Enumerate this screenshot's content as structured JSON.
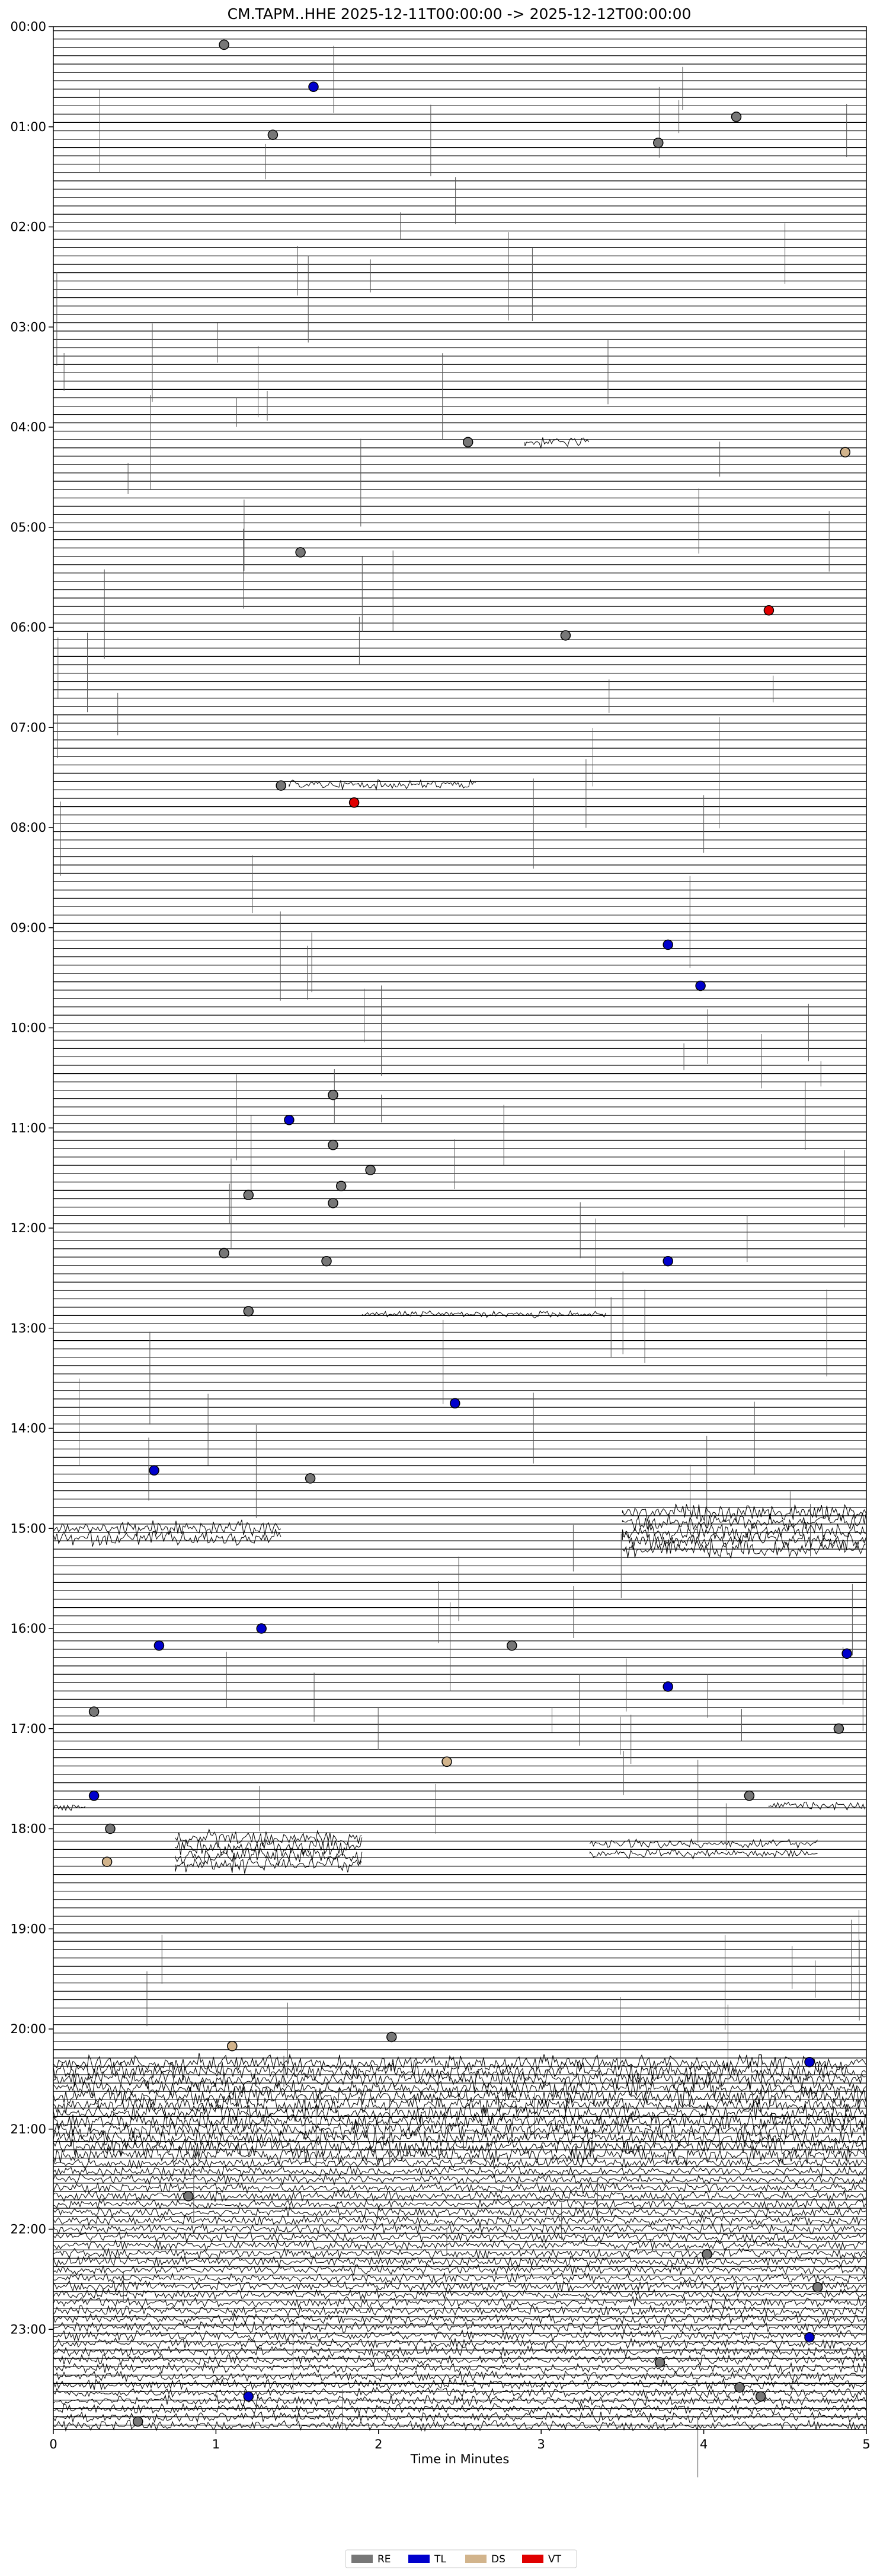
{
  "chart_data": {
    "type": "scatter",
    "title": "CM.TAPM..HHE  2025-12-11T00:00:00 -> 2025-12-12T00:00:00",
    "xlabel": "Time in Minutes",
    "ylabel": "",
    "xlim": [
      0,
      5
    ],
    "ylim_hours": [
      0,
      24
    ],
    "x_ticks": [
      0,
      1,
      2,
      3,
      4,
      5
    ],
    "y_tick_labels": [
      "00:00",
      "01:00",
      "02:00",
      "03:00",
      "04:00",
      "05:00",
      "06:00",
      "07:00",
      "08:00",
      "09:00",
      "10:00",
      "11:00",
      "12:00",
      "13:00",
      "14:00",
      "15:00",
      "16:00",
      "17:00",
      "18:00",
      "19:00",
      "20:00",
      "21:00",
      "22:00",
      "23:00"
    ],
    "trace_interval_minutes": 5,
    "colors": {
      "RE": "#777777",
      "TL": "#0000cc",
      "DS": "#d2b48c",
      "VT": "#e00000"
    },
    "legend": [
      {
        "key": "RE",
        "label": "RE"
      },
      {
        "key": "TL",
        "label": "TL"
      },
      {
        "key": "DS",
        "label": "DS"
      },
      {
        "key": "VT",
        "label": "VT"
      }
    ],
    "legend_position": "bottom-center",
    "events": [
      {
        "minute": 1.05,
        "hour": 0.18,
        "class": "RE"
      },
      {
        "minute": 1.6,
        "hour": 0.6,
        "class": "TL"
      },
      {
        "minute": 1.35,
        "hour": 1.08,
        "class": "RE"
      },
      {
        "minute": 3.72,
        "hour": 1.16,
        "class": "RE"
      },
      {
        "minute": 4.2,
        "hour": 0.9,
        "class": "RE"
      },
      {
        "minute": 2.55,
        "hour": 4.15,
        "class": "RE"
      },
      {
        "minute": 4.87,
        "hour": 4.25,
        "class": "DS"
      },
      {
        "minute": 1.52,
        "hour": 5.25,
        "class": "RE"
      },
      {
        "minute": 4.4,
        "hour": 5.83,
        "class": "VT"
      },
      {
        "minute": 3.15,
        "hour": 6.08,
        "class": "RE"
      },
      {
        "minute": 1.4,
        "hour": 7.58,
        "class": "RE"
      },
      {
        "minute": 1.85,
        "hour": 7.75,
        "class": "VT"
      },
      {
        "minute": 3.78,
        "hour": 9.17,
        "class": "TL"
      },
      {
        "minute": 3.98,
        "hour": 9.58,
        "class": "TL"
      },
      {
        "minute": 1.72,
        "hour": 10.67,
        "class": "RE"
      },
      {
        "minute": 1.45,
        "hour": 10.92,
        "class": "TL"
      },
      {
        "minute": 1.72,
        "hour": 11.17,
        "class": "RE"
      },
      {
        "minute": 1.95,
        "hour": 11.42,
        "class": "RE"
      },
      {
        "minute": 1.77,
        "hour": 11.58,
        "class": "RE"
      },
      {
        "minute": 1.2,
        "hour": 11.67,
        "class": "RE"
      },
      {
        "minute": 1.72,
        "hour": 11.75,
        "class": "RE"
      },
      {
        "minute": 1.05,
        "hour": 12.25,
        "class": "RE"
      },
      {
        "minute": 1.68,
        "hour": 12.33,
        "class": "RE"
      },
      {
        "minute": 3.78,
        "hour": 12.33,
        "class": "TL"
      },
      {
        "minute": 1.2,
        "hour": 12.83,
        "class": "RE"
      },
      {
        "minute": 2.47,
        "hour": 13.75,
        "class": "TL"
      },
      {
        "minute": 0.62,
        "hour": 14.42,
        "class": "TL"
      },
      {
        "minute": 1.58,
        "hour": 14.5,
        "class": "RE"
      },
      {
        "minute": 1.28,
        "hour": 16.0,
        "class": "TL"
      },
      {
        "minute": 0.65,
        "hour": 16.17,
        "class": "TL"
      },
      {
        "minute": 2.82,
        "hour": 16.17,
        "class": "RE"
      },
      {
        "minute": 4.88,
        "hour": 16.25,
        "class": "TL"
      },
      {
        "minute": 3.78,
        "hour": 16.58,
        "class": "TL"
      },
      {
        "minute": 0.25,
        "hour": 16.83,
        "class": "RE"
      },
      {
        "minute": 4.83,
        "hour": 17.0,
        "class": "RE"
      },
      {
        "minute": 2.42,
        "hour": 17.33,
        "class": "DS"
      },
      {
        "minute": 0.25,
        "hour": 17.67,
        "class": "TL"
      },
      {
        "minute": 4.28,
        "hour": 17.67,
        "class": "RE"
      },
      {
        "minute": 0.35,
        "hour": 18.0,
        "class": "RE"
      },
      {
        "minute": 0.33,
        "hour": 18.33,
        "class": "DS"
      },
      {
        "minute": 1.1,
        "hour": 20.17,
        "class": "DS"
      },
      {
        "minute": 2.08,
        "hour": 20.08,
        "class": "RE"
      },
      {
        "minute": 4.65,
        "hour": 20.33,
        "class": "TL"
      },
      {
        "minute": 0.83,
        "hour": 21.67,
        "class": "RE"
      },
      {
        "minute": 4.02,
        "hour": 22.25,
        "class": "RE"
      },
      {
        "minute": 4.7,
        "hour": 22.58,
        "class": "RE"
      },
      {
        "minute": 4.65,
        "hour": 23.08,
        "class": "TL"
      },
      {
        "minute": 3.73,
        "hour": 23.33,
        "class": "RE"
      },
      {
        "minute": 4.22,
        "hour": 23.58,
        "class": "RE"
      },
      {
        "minute": 4.35,
        "hour": 23.67,
        "class": "RE"
      },
      {
        "minute": 1.2,
        "hour": 23.67,
        "class": "TL"
      },
      {
        "minute": 0.52,
        "hour": 23.92,
        "class": "RE"
      }
    ],
    "activity_bands": [
      {
        "hour_start": 4.1,
        "hour_end": 4.2,
        "minute_start": 2.9,
        "minute_end": 3.3,
        "strength": 0.6
      },
      {
        "hour_start": 7.52,
        "hour_end": 7.62,
        "minute_start": 1.45,
        "minute_end": 2.6,
        "strength": 0.5
      },
      {
        "hour_start": 12.8,
        "hour_end": 12.92,
        "minute_start": 1.9,
        "minute_end": 3.4,
        "strength": 0.4
      },
      {
        "hour_start": 14.95,
        "hour_end": 15.15,
        "minute_start": 0.0,
        "minute_end": 1.4,
        "strength": 0.9
      },
      {
        "hour_start": 14.8,
        "hour_end": 15.25,
        "minute_start": 3.5,
        "minute_end": 5.0,
        "strength": 1.0
      },
      {
        "hour_start": 17.72,
        "hour_end": 17.82,
        "minute_start": 0.0,
        "minute_end": 0.2,
        "strength": 0.6
      },
      {
        "hour_start": 17.72,
        "hour_end": 17.82,
        "minute_start": 4.4,
        "minute_end": 5.0,
        "strength": 0.5
      },
      {
        "hour_start": 18.05,
        "hour_end": 18.4,
        "minute_start": 0.75,
        "minute_end": 1.9,
        "strength": 1.0
      },
      {
        "hour_start": 18.1,
        "hour_end": 18.3,
        "minute_start": 3.3,
        "minute_end": 4.7,
        "strength": 0.5
      },
      {
        "hour_start": 20.3,
        "hour_end": 21.3,
        "minute_start": 0.0,
        "minute_end": 5.0,
        "strength": 1.0
      },
      {
        "hour_start": 21.3,
        "hour_end": 24.0,
        "minute_start": 0.0,
        "minute_end": 5.0,
        "strength": 0.55
      }
    ]
  }
}
